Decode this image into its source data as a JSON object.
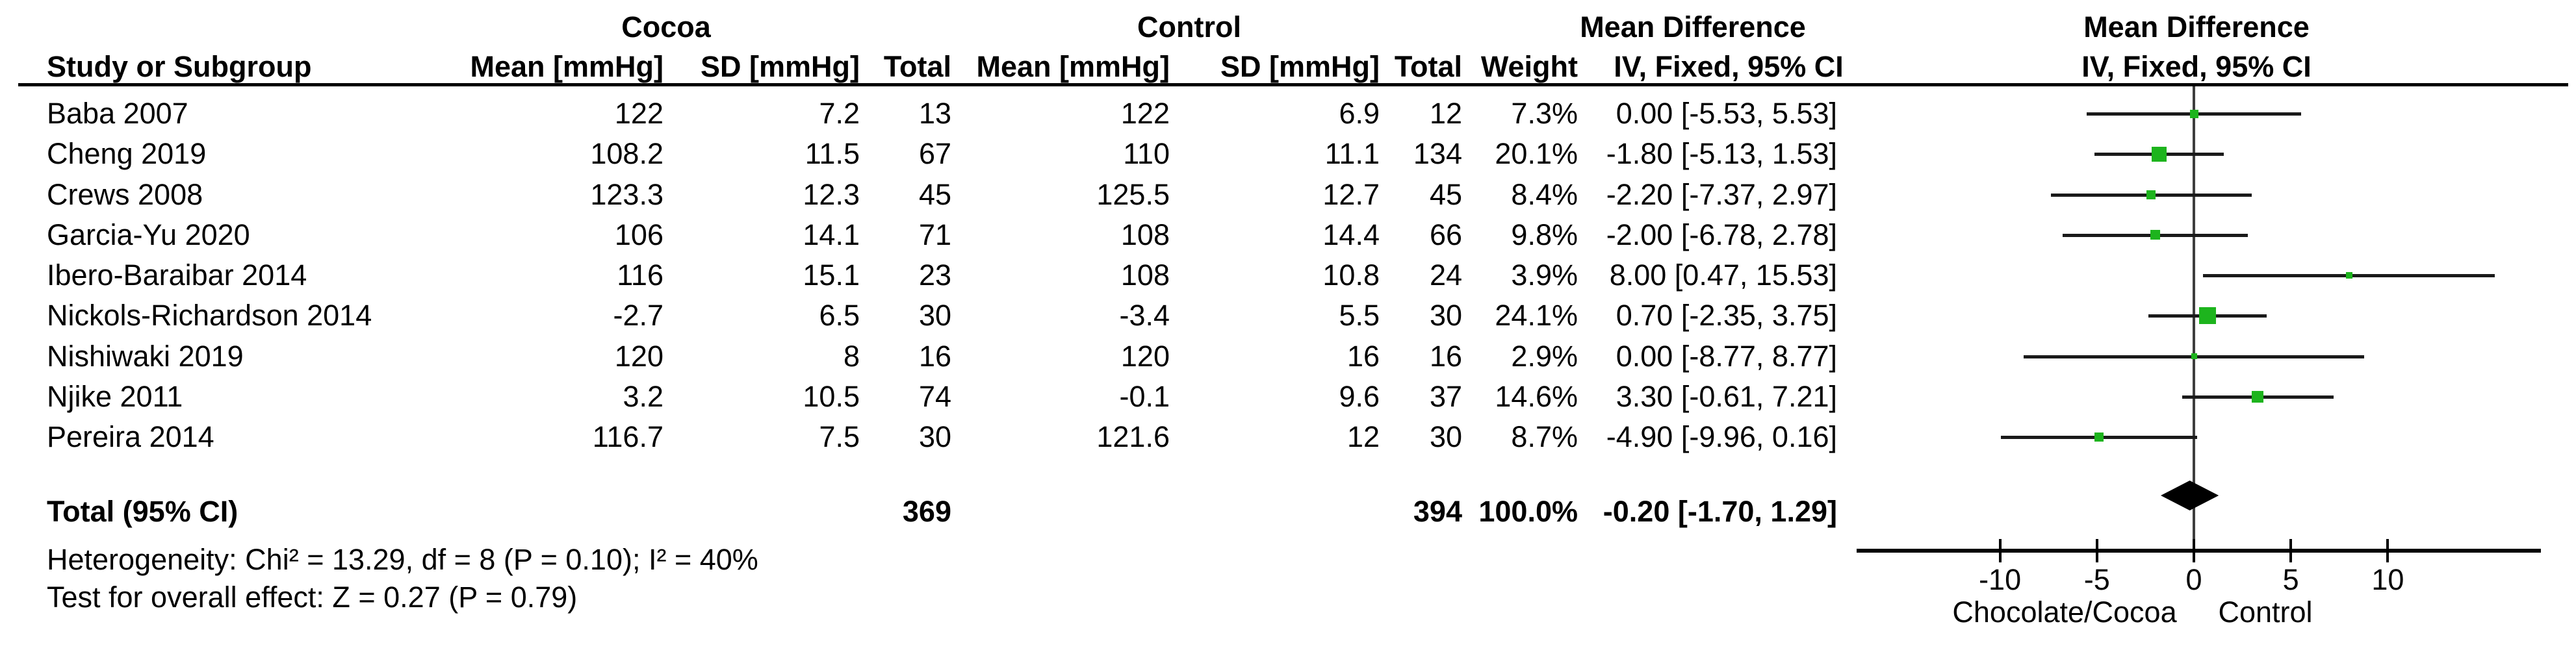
{
  "headers": {
    "group1": "Cocoa",
    "group2": "Control",
    "mean_difference": "Mean Difference",
    "method": "IV, Fixed, 95% CI",
    "study": "Study or Subgroup",
    "mean": "Mean [mmHg]",
    "sd": "SD [mmHg]",
    "total": "Total",
    "weight": "Weight"
  },
  "rows": [
    {
      "study": "Baba 2007",
      "m1": "122",
      "sd1": "7.2",
      "n1": "13",
      "m2": "122",
      "sd2": "6.9",
      "n2": "12",
      "weight": "7.3%",
      "ci": "0.00 [-5.53, 5.53]"
    },
    {
      "study": "Cheng 2019",
      "m1": "108.2",
      "sd1": "11.5",
      "n1": "67",
      "m2": "110",
      "sd2": "11.1",
      "n2": "134",
      "weight": "20.1%",
      "ci": "-1.80 [-5.13, 1.53]"
    },
    {
      "study": "Crews 2008",
      "m1": "123.3",
      "sd1": "12.3",
      "n1": "45",
      "m2": "125.5",
      "sd2": "12.7",
      "n2": "45",
      "weight": "8.4%",
      "ci": "-2.20 [-7.37, 2.97]"
    },
    {
      "study": "Garcia-Yu 2020",
      "m1": "106",
      "sd1": "14.1",
      "n1": "71",
      "m2": "108",
      "sd2": "14.4",
      "n2": "66",
      "weight": "9.8%",
      "ci": "-2.00 [-6.78, 2.78]"
    },
    {
      "study": "Ibero-Baraibar 2014",
      "m1": "116",
      "sd1": "15.1",
      "n1": "23",
      "m2": "108",
      "sd2": "10.8",
      "n2": "24",
      "weight": "3.9%",
      "ci": "8.00 [0.47, 15.53]"
    },
    {
      "study": "Nickols-Richardson 2014",
      "m1": "-2.7",
      "sd1": "6.5",
      "n1": "30",
      "m2": "-3.4",
      "sd2": "5.5",
      "n2": "30",
      "weight": "24.1%",
      "ci": "0.70 [-2.35, 3.75]"
    },
    {
      "study": "Nishiwaki 2019",
      "m1": "120",
      "sd1": "8",
      "n1": "16",
      "m2": "120",
      "sd2": "16",
      "n2": "16",
      "weight": "2.9%",
      "ci": "0.00 [-8.77, 8.77]"
    },
    {
      "study": "Njike 2011",
      "m1": "3.2",
      "sd1": "10.5",
      "n1": "74",
      "m2": "-0.1",
      "sd2": "9.6",
      "n2": "37",
      "weight": "14.6%",
      "ci": "3.30 [-0.61, 7.21]"
    },
    {
      "study": "Pereira 2014",
      "m1": "116.7",
      "sd1": "7.5",
      "n1": "30",
      "m2": "121.6",
      "sd2": "12",
      "n2": "30",
      "weight": "8.7%",
      "ci": "-4.90 [-9.96, 0.16]"
    }
  ],
  "totals": {
    "label": "Total (95% CI)",
    "n1": "369",
    "n2": "394",
    "weight": "100.0%",
    "ci": "-0.20 [-1.70, 1.29]"
  },
  "footnotes": {
    "heterogeneity": "Heterogeneity: Chi² = 13.29, df = 8 (P = 0.10); I² = 40%",
    "overall_effect": "Test for overall effect: Z = 0.27 (P = 0.79)"
  },
  "chart_data": {
    "type": "scatter",
    "title": "Mean Difference",
    "subtitle": "IV, Fixed, 95% CI",
    "xlabel_left": "Chocolate/Cocoa",
    "xlabel_right": "Control",
    "x_ticks": [
      -10,
      -5,
      0,
      5,
      10
    ],
    "xlim": [
      -17.5,
      17.9
    ],
    "grid": false,
    "studies": [
      {
        "name": "Baba 2007",
        "est": 0.0,
        "lo": -5.53,
        "hi": 5.53,
        "weight": 7.3
      },
      {
        "name": "Cheng 2019",
        "est": -1.8,
        "lo": -5.13,
        "hi": 1.53,
        "weight": 20.1
      },
      {
        "name": "Crews 2008",
        "est": -2.2,
        "lo": -7.37,
        "hi": 2.97,
        "weight": 8.4
      },
      {
        "name": "Garcia-Yu 2020",
        "est": -2.0,
        "lo": -6.78,
        "hi": 2.78,
        "weight": 9.8
      },
      {
        "name": "Ibero-Baraibar 2014",
        "est": 8.0,
        "lo": 0.47,
        "hi": 15.53,
        "weight": 3.9
      },
      {
        "name": "Nickols-Richardson 2014",
        "est": 0.7,
        "lo": -2.35,
        "hi": 3.75,
        "weight": 24.1
      },
      {
        "name": "Nishiwaki 2019",
        "est": 0.0,
        "lo": -8.77,
        "hi": 8.77,
        "weight": 2.9
      },
      {
        "name": "Njike 2011",
        "est": 3.3,
        "lo": -0.61,
        "hi": 7.21,
        "weight": 14.6
      },
      {
        "name": "Pereira 2014",
        "est": -4.9,
        "lo": -9.96,
        "hi": 0.16,
        "weight": 8.7
      }
    ],
    "overall": {
      "label": "Total (95% CI)",
      "est": -0.2,
      "lo": -1.7,
      "hi": 1.29
    },
    "marker_color": "#1db41d",
    "line_color": "#1a1a1a"
  }
}
